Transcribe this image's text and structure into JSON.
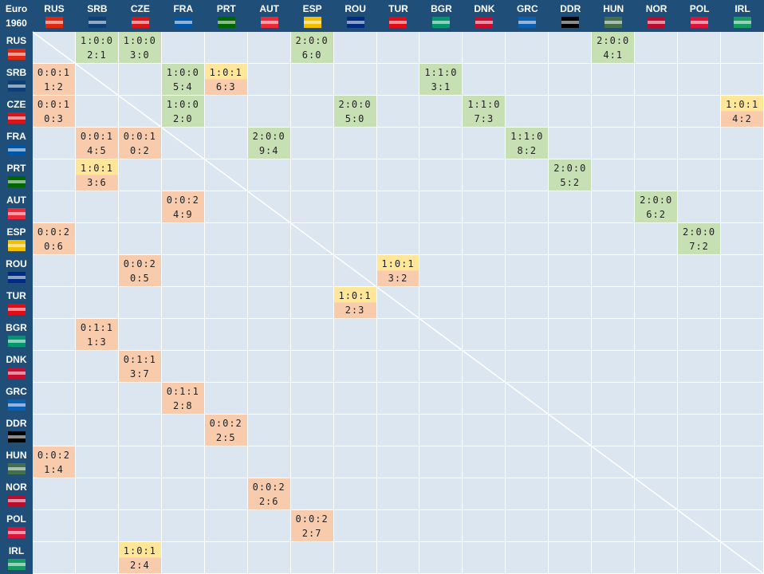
{
  "corner": {
    "line1": "Euro",
    "line2": "1960"
  },
  "teams": [
    "RUS",
    "SRB",
    "CZE",
    "FRA",
    "PRT",
    "AUT",
    "ESP",
    "ROU",
    "TUR",
    "BGR",
    "DNK",
    "GRC",
    "DDR",
    "HUN",
    "NOR",
    "POL",
    "IRL"
  ],
  "flag_colors": {
    "RUS": "#de2910",
    "SRB": "#0c4076",
    "CZE": "#d7141a",
    "FRA": "#0055a4",
    "PRT": "#006600",
    "AUT": "#ed2939",
    "ESP": "#f1bf00",
    "ROU": "#002b7f",
    "TUR": "#e30a17",
    "BGR": "#00966e",
    "DNK": "#c60c30",
    "GRC": "#0d5eaf",
    "DDR": "#000000",
    "HUN": "#436f4d",
    "NOR": "#ba0c2f",
    "POL": "#dc143c",
    "IRL": "#169b62"
  },
  "results": [
    {
      "row": "RUS",
      "col": "SRB",
      "record": "1:0:0",
      "score": "2:1",
      "color": "green"
    },
    {
      "row": "RUS",
      "col": "CZE",
      "record": "1:0:0",
      "score": "3:0",
      "color": "green"
    },
    {
      "row": "RUS",
      "col": "ESP",
      "record": "2:0:0",
      "score": "6:0",
      "color": "green"
    },
    {
      "row": "RUS",
      "col": "HUN",
      "record": "2:0:0",
      "score": "4:1",
      "color": "green"
    },
    {
      "row": "SRB",
      "col": "RUS",
      "record": "0:0:1",
      "score": "1:2",
      "color": "orange"
    },
    {
      "row": "SRB",
      "col": "FRA",
      "record": "1:0:0",
      "score": "5:4",
      "color": "green"
    },
    {
      "row": "SRB",
      "col": "PRT",
      "record": "1:0:1",
      "score": "6:3",
      "color": "yellow"
    },
    {
      "row": "SRB",
      "col": "BGR",
      "record": "1:1:0",
      "score": "3:1",
      "color": "green"
    },
    {
      "row": "CZE",
      "col": "RUS",
      "record": "0:0:1",
      "score": "0:3",
      "color": "orange"
    },
    {
      "row": "CZE",
      "col": "FRA",
      "record": "1:0:0",
      "score": "2:0",
      "color": "green"
    },
    {
      "row": "CZE",
      "col": "ROU",
      "record": "2:0:0",
      "score": "5:0",
      "color": "green"
    },
    {
      "row": "CZE",
      "col": "DNK",
      "record": "1:1:0",
      "score": "7:3",
      "color": "green"
    },
    {
      "row": "CZE",
      "col": "IRL",
      "record": "1:0:1",
      "score": "4:2",
      "color": "yellow"
    },
    {
      "row": "FRA",
      "col": "SRB",
      "record": "0:0:1",
      "score": "4:5",
      "color": "orange"
    },
    {
      "row": "FRA",
      "col": "CZE",
      "record": "0:0:1",
      "score": "0:2",
      "color": "orange"
    },
    {
      "row": "FRA",
      "col": "AUT",
      "record": "2:0:0",
      "score": "9:4",
      "color": "green"
    },
    {
      "row": "FRA",
      "col": "GRC",
      "record": "1:1:0",
      "score": "8:2",
      "color": "green"
    },
    {
      "row": "PRT",
      "col": "SRB",
      "record": "1:0:1",
      "score": "3:6",
      "color": "yellow"
    },
    {
      "row": "PRT",
      "col": "DDR",
      "record": "2:0:0",
      "score": "5:2",
      "color": "green"
    },
    {
      "row": "AUT",
      "col": "FRA",
      "record": "0:0:2",
      "score": "4:9",
      "color": "orange"
    },
    {
      "row": "AUT",
      "col": "NOR",
      "record": "2:0:0",
      "score": "6:2",
      "color": "green"
    },
    {
      "row": "ESP",
      "col": "RUS",
      "record": "0:0:2",
      "score": "0:6",
      "color": "orange"
    },
    {
      "row": "ESP",
      "col": "POL",
      "record": "2:0:0",
      "score": "7:2",
      "color": "green"
    },
    {
      "row": "ROU",
      "col": "CZE",
      "record": "0:0:2",
      "score": "0:5",
      "color": "orange"
    },
    {
      "row": "ROU",
      "col": "TUR",
      "record": "1:0:1",
      "score": "3:2",
      "color": "yellow"
    },
    {
      "row": "TUR",
      "col": "ROU",
      "record": "1:0:1",
      "score": "2:3",
      "color": "yellow"
    },
    {
      "row": "BGR",
      "col": "SRB",
      "record": "0:1:1",
      "score": "1:3",
      "color": "orange"
    },
    {
      "row": "DNK",
      "col": "CZE",
      "record": "0:1:1",
      "score": "3:7",
      "color": "orange"
    },
    {
      "row": "GRC",
      "col": "FRA",
      "record": "0:1:1",
      "score": "2:8",
      "color": "orange"
    },
    {
      "row": "DDR",
      "col": "PRT",
      "record": "0:0:2",
      "score": "2:5",
      "color": "orange"
    },
    {
      "row": "HUN",
      "col": "RUS",
      "record": "0:0:2",
      "score": "1:4",
      "color": "orange"
    },
    {
      "row": "NOR",
      "col": "AUT",
      "record": "0:0:2",
      "score": "2:6",
      "color": "orange"
    },
    {
      "row": "POL",
      "col": "ESP",
      "record": "0:0:2",
      "score": "2:7",
      "color": "orange"
    },
    {
      "row": "IRL",
      "col": "CZE",
      "record": "1:0:1",
      "score": "2:4",
      "color": "yellow"
    }
  ]
}
